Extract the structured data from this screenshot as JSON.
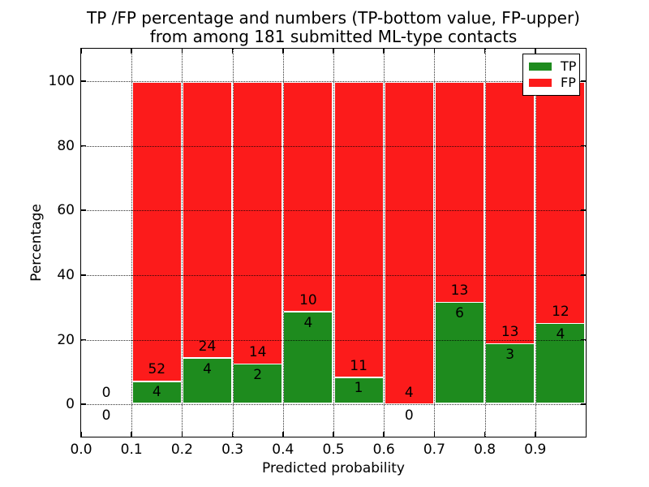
{
  "figure": {
    "title_line1": "TP /FP percentage and numbers (TP-bottom value, FP-upper)",
    "title_line2": "from among 181 submitted ML-type contacts",
    "xlabel": "Predicted probability",
    "ylabel": "Percentage"
  },
  "legend": {
    "position": "upper right",
    "entries": [
      {
        "label": "TP",
        "color": "#1e8b1e"
      },
      {
        "label": "FP",
        "color": "#fc1b1b"
      }
    ]
  },
  "chart_data": {
    "type": "bar",
    "stacked": true,
    "title": "TP /FP percentage and numbers (TP-bottom value, FP-upper)\nfrom among 181 submitted ML-type contacts",
    "xlabel": "Predicted probability",
    "ylabel": "Percentage",
    "xlim": [
      0.0,
      1.0
    ],
    "ylim": [
      -10,
      110
    ],
    "xticks": {
      "values": [
        0.0,
        0.1,
        0.2,
        0.3,
        0.4,
        0.5,
        0.6,
        0.7,
        0.8,
        0.9
      ],
      "labels": [
        "0.0",
        "0.1",
        "0.2",
        "0.3",
        "0.4",
        "0.5",
        "0.6",
        "0.7",
        "0.8",
        "0.9"
      ]
    },
    "yticks": {
      "values": [
        0,
        20,
        40,
        60,
        80,
        100
      ],
      "labels": [
        "0",
        "20",
        "40",
        "60",
        "80",
        "100"
      ]
    },
    "grid": {
      "visible": true,
      "style": "dotted",
      "above_bars": true
    },
    "colors": {
      "tp": "#1e8b1e",
      "fp": "#fc1b1b"
    },
    "total_contacts": 181,
    "annotation_offset_pct": 3.5,
    "bins": [
      {
        "range": [
          0.0,
          0.1
        ],
        "tp_count": 0,
        "fp_count": 0,
        "tp_pct": 0.0,
        "fp_pct": 0.0,
        "has_bar": false
      },
      {
        "range": [
          0.1,
          0.2
        ],
        "tp_count": 4,
        "fp_count": 52,
        "tp_pct": 7.14,
        "fp_pct": 92.86,
        "has_bar": true
      },
      {
        "range": [
          0.2,
          0.3
        ],
        "tp_count": 4,
        "fp_count": 24,
        "tp_pct": 14.29,
        "fp_pct": 85.71,
        "has_bar": true
      },
      {
        "range": [
          0.3,
          0.4
        ],
        "tp_count": 2,
        "fp_count": 14,
        "tp_pct": 12.5,
        "fp_pct": 87.5,
        "has_bar": true
      },
      {
        "range": [
          0.4,
          0.5
        ],
        "tp_count": 4,
        "fp_count": 10,
        "tp_pct": 28.57,
        "fp_pct": 71.43,
        "has_bar": true
      },
      {
        "range": [
          0.5,
          0.6
        ],
        "tp_count": 1,
        "fp_count": 11,
        "tp_pct": 8.33,
        "fp_pct": 91.67,
        "has_bar": true
      },
      {
        "range": [
          0.6,
          0.7
        ],
        "tp_count": 0,
        "fp_count": 4,
        "tp_pct": 0.0,
        "fp_pct": 100.0,
        "has_bar": true
      },
      {
        "range": [
          0.7,
          0.8
        ],
        "tp_count": 6,
        "fp_count": 13,
        "tp_pct": 31.58,
        "fp_pct": 68.42,
        "has_bar": true
      },
      {
        "range": [
          0.8,
          0.9
        ],
        "tp_count": 3,
        "fp_count": 13,
        "tp_pct": 18.75,
        "fp_pct": 81.25,
        "has_bar": true
      },
      {
        "range": [
          0.9,
          1.0
        ],
        "tp_count": 4,
        "fp_count": 12,
        "tp_pct": 25.0,
        "fp_pct": 75.0,
        "has_bar": true
      }
    ]
  }
}
